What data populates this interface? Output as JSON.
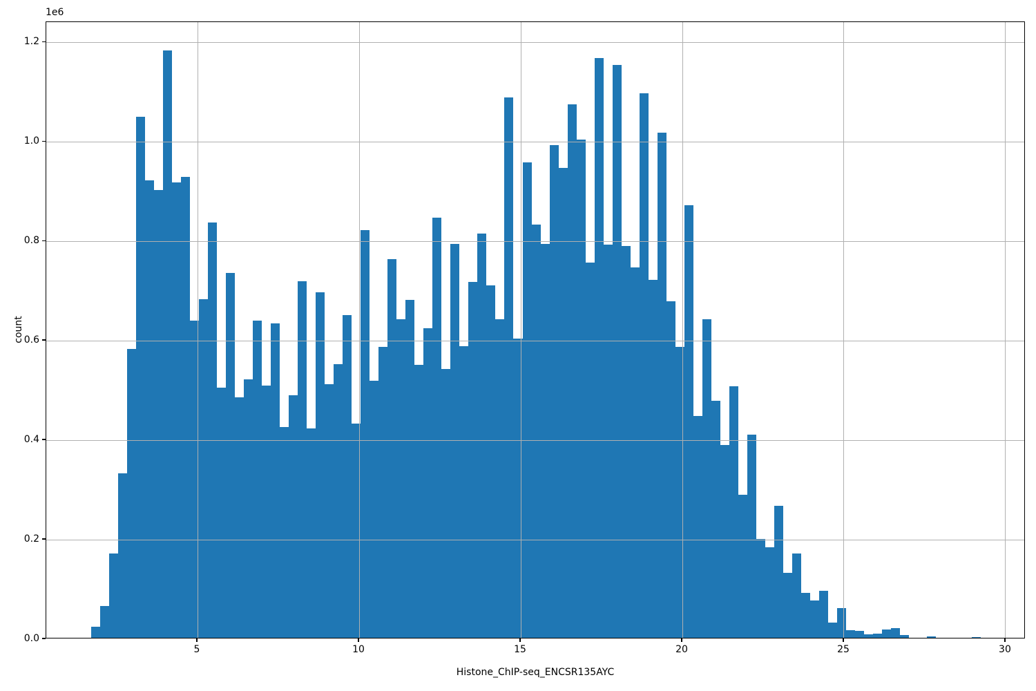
{
  "chart_data": {
    "type": "bar",
    "subtype": "histogram",
    "title": "",
    "xlabel": "Histone_ChIP-seq_ENCSR135AYC",
    "ylabel": "count",
    "offset_text": "1e6",
    "bar_color": "#1f77b4",
    "grid_color": "#b0b0b0",
    "axis_color": "#000000",
    "grid": true,
    "legend_position": "none",
    "bin_start": 1.7,
    "bin_width": 0.2782,
    "counts": [
      22000,
      64000,
      170000,
      330000,
      580000,
      1048000,
      919000,
      900000,
      1181000,
      916000,
      927000,
      638000,
      681000,
      835000,
      503000,
      733000,
      483000,
      519000,
      637000,
      507000,
      632000,
      424000,
      487000,
      717000,
      421000,
      695000,
      510000,
      550000,
      649000,
      430000,
      819000,
      517000,
      585000,
      761000,
      640000,
      679000,
      549000,
      622000,
      844000,
      541000,
      792000,
      586000,
      716000,
      813000,
      709000,
      641000,
      1086000,
      601000,
      956000,
      831000,
      792000,
      991000,
      944000,
      1073000,
      1001000,
      755000,
      1166000,
      790000,
      1152000,
      788000,
      745000,
      1095000,
      719000,
      1016000,
      676000,
      585000,
      870000,
      446000,
      640000,
      476000,
      388000,
      505000,
      287000,
      408000,
      199000,
      182000,
      266000,
      131000,
      170000,
      91000,
      75000,
      94000,
      31000,
      60000,
      15000,
      14000,
      7000,
      9000,
      17000,
      20000,
      6000,
      0,
      0,
      3000,
      0,
      0,
      0,
      0,
      2000
    ],
    "x_ticks": [
      5,
      10,
      15,
      20,
      25,
      30
    ],
    "y_ticks": [
      0,
      200000,
      400000,
      600000,
      800000,
      1000000,
      1200000
    ],
    "y_tick_labels": [
      "0.0",
      "0.2",
      "0.4",
      "0.6",
      "0.8",
      "1.0",
      "1.2"
    ],
    "xlim": [
      0.32,
      30.62
    ],
    "ylim": [
      0,
      1240500
    ]
  }
}
